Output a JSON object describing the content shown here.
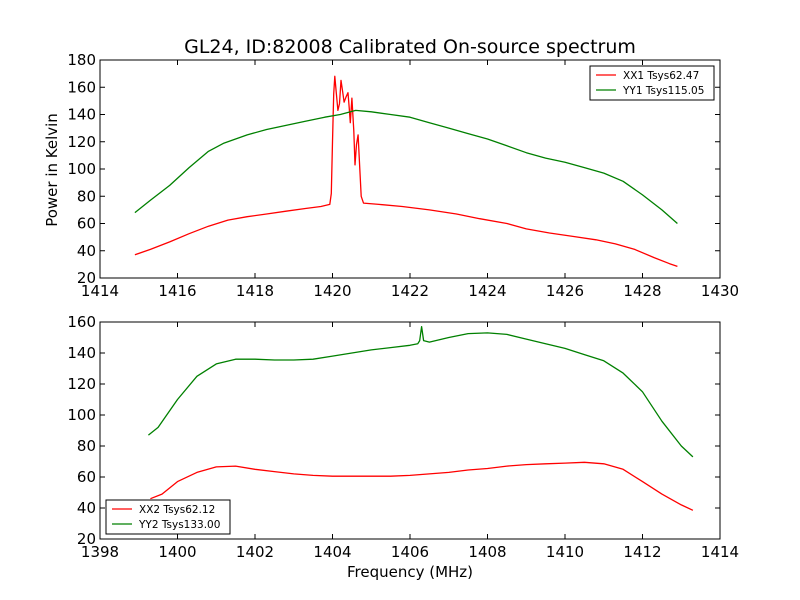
{
  "chart_data": [
    {
      "type": "line",
      "title": "GL24, ID:82008 Calibrated On-source spectrum",
      "xlabel": "",
      "ylabel": "Power in Kelvin",
      "xlim": [
        1414,
        1430
      ],
      "ylim": [
        20,
        180
      ],
      "xticks": [
        1414,
        1416,
        1418,
        1420,
        1422,
        1424,
        1426,
        1428,
        1430
      ],
      "yticks": [
        20,
        40,
        60,
        80,
        100,
        120,
        140,
        160,
        180
      ],
      "grid": false,
      "legend": "top-right",
      "series": [
        {
          "name": "XX1 Tsys62.47",
          "color": "#ff0000",
          "points": [
            [
              1414.9,
              37
            ],
            [
              1415.3,
              41
            ],
            [
              1415.8,
              46.5
            ],
            [
              1416.3,
              52.5
            ],
            [
              1416.8,
              58
            ],
            [
              1417.3,
              62.5
            ],
            [
              1417.8,
              65
            ],
            [
              1418.3,
              67
            ],
            [
              1418.8,
              69
            ],
            [
              1419.3,
              71
            ],
            [
              1419.7,
              72.5
            ],
            [
              1419.93,
              74
            ],
            [
              1419.97,
              82
            ],
            [
              1420.0,
              120
            ],
            [
              1420.03,
              155
            ],
            [
              1420.06,
              168
            ],
            [
              1420.1,
              155
            ],
            [
              1420.14,
              143
            ],
            [
              1420.18,
              148
            ],
            [
              1420.22,
              165
            ],
            [
              1420.26,
              157
            ],
            [
              1420.3,
              149
            ],
            [
              1420.35,
              153
            ],
            [
              1420.4,
              156
            ],
            [
              1420.43,
              145
            ],
            [
              1420.46,
              134
            ],
            [
              1420.5,
              152
            ],
            [
              1420.55,
              128
            ],
            [
              1420.58,
              103
            ],
            [
              1420.62,
              118
            ],
            [
              1420.66,
              125
            ],
            [
              1420.7,
              103
            ],
            [
              1420.74,
              80
            ],
            [
              1420.8,
              75
            ],
            [
              1421.2,
              74
            ],
            [
              1421.8,
              72.5
            ],
            [
              1422.5,
              70
            ],
            [
              1423.2,
              67
            ],
            [
              1423.8,
              63.5
            ],
            [
              1424.5,
              60
            ],
            [
              1425.0,
              56
            ],
            [
              1425.6,
              53
            ],
            [
              1426.2,
              50.5
            ],
            [
              1426.8,
              48
            ],
            [
              1427.3,
              45
            ],
            [
              1427.8,
              41
            ],
            [
              1428.3,
              35
            ],
            [
              1428.7,
              30.5
            ],
            [
              1428.9,
              28.5
            ]
          ]
        },
        {
          "name": "YY1 Tsys115.05",
          "color": "#008000",
          "points": [
            [
              1414.9,
              68
            ],
            [
              1415.3,
              77
            ],
            [
              1415.8,
              88
            ],
            [
              1416.3,
              101
            ],
            [
              1416.8,
              113
            ],
            [
              1417.2,
              119
            ],
            [
              1417.8,
              125
            ],
            [
              1418.3,
              129
            ],
            [
              1418.8,
              132
            ],
            [
              1419.3,
              135
            ],
            [
              1419.8,
              138
            ],
            [
              1420.2,
              140
            ],
            [
              1420.6,
              143
            ],
            [
              1421.0,
              142
            ],
            [
              1421.5,
              140
            ],
            [
              1422.0,
              138
            ],
            [
              1422.5,
              134
            ],
            [
              1423.0,
              130
            ],
            [
              1423.5,
              126
            ],
            [
              1424.0,
              122
            ],
            [
              1424.5,
              117
            ],
            [
              1425.0,
              112
            ],
            [
              1425.5,
              108
            ],
            [
              1426.0,
              105
            ],
            [
              1426.5,
              101
            ],
            [
              1427.0,
              97
            ],
            [
              1427.5,
              91
            ],
            [
              1428.0,
              81
            ],
            [
              1428.5,
              70
            ],
            [
              1428.9,
              60
            ]
          ]
        }
      ]
    },
    {
      "type": "line",
      "title": "",
      "xlabel": "Frequency (MHz)",
      "ylabel": "",
      "xlim": [
        1398,
        1414
      ],
      "ylim": [
        20,
        160
      ],
      "xticks": [
        1398,
        1400,
        1402,
        1404,
        1406,
        1408,
        1410,
        1412,
        1414
      ],
      "yticks": [
        20,
        40,
        60,
        80,
        100,
        120,
        140,
        160
      ],
      "grid": false,
      "legend": "bottom-left",
      "series": [
        {
          "name": "XX2 Tsys62.12",
          "color": "#ff0000",
          "points": [
            [
              1399.3,
              46
            ],
            [
              1399.6,
              49
            ],
            [
              1400.0,
              57
            ],
            [
              1400.5,
              63
            ],
            [
              1401.0,
              66.5
            ],
            [
              1401.5,
              67
            ],
            [
              1402.0,
              65
            ],
            [
              1402.5,
              63.5
            ],
            [
              1403.0,
              62
            ],
            [
              1403.5,
              61
            ],
            [
              1404.0,
              60.5
            ],
            [
              1404.5,
              60.5
            ],
            [
              1405.0,
              60.5
            ],
            [
              1405.5,
              60.5
            ],
            [
              1406.0,
              61
            ],
            [
              1406.5,
              62
            ],
            [
              1407.0,
              63
            ],
            [
              1407.5,
              64.5
            ],
            [
              1408.0,
              65.5
            ],
            [
              1408.5,
              67
            ],
            [
              1409.0,
              68
            ],
            [
              1409.5,
              68.5
            ],
            [
              1410.0,
              69
            ],
            [
              1410.5,
              69.5
            ],
            [
              1411.0,
              68.5
            ],
            [
              1411.5,
              65
            ],
            [
              1412.0,
              57
            ],
            [
              1412.5,
              49
            ],
            [
              1413.0,
              42
            ],
            [
              1413.3,
              38.5
            ]
          ]
        },
        {
          "name": "YY2 Tsys133.00",
          "color": "#008000",
          "points": [
            [
              1399.25,
              87
            ],
            [
              1399.5,
              92
            ],
            [
              1400.0,
              110
            ],
            [
              1400.5,
              125
            ],
            [
              1401.0,
              133
            ],
            [
              1401.5,
              136
            ],
            [
              1402.0,
              136
            ],
            [
              1402.5,
              135.5
            ],
            [
              1403.0,
              135.5
            ],
            [
              1403.5,
              136
            ],
            [
              1404.0,
              138
            ],
            [
              1404.5,
              140
            ],
            [
              1405.0,
              142
            ],
            [
              1405.5,
              143.5
            ],
            [
              1406.0,
              145
            ],
            [
              1406.2,
              146
            ],
            [
              1406.25,
              148
            ],
            [
              1406.3,
              157
            ],
            [
              1406.35,
              148
            ],
            [
              1406.5,
              147
            ],
            [
              1407.0,
              150
            ],
            [
              1407.5,
              152.5
            ],
            [
              1408.0,
              153
            ],
            [
              1408.5,
              152
            ],
            [
              1409.0,
              149
            ],
            [
              1409.5,
              146
            ],
            [
              1410.0,
              143
            ],
            [
              1410.5,
              139
            ],
            [
              1411.0,
              135
            ],
            [
              1411.5,
              127
            ],
            [
              1412.0,
              115
            ],
            [
              1412.5,
              96
            ],
            [
              1413.0,
              80
            ],
            [
              1413.3,
              73
            ]
          ]
        }
      ]
    }
  ]
}
